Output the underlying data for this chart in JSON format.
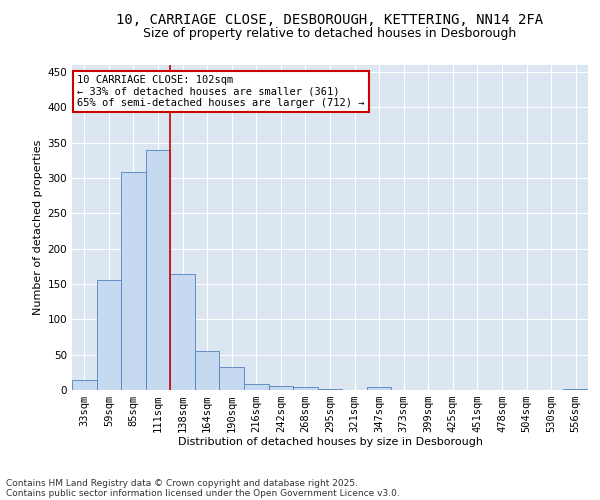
{
  "title_line1": "10, CARRIAGE CLOSE, DESBOROUGH, KETTERING, NN14 2FA",
  "title_line2": "Size of property relative to detached houses in Desborough",
  "xlabel": "Distribution of detached houses by size in Desborough",
  "ylabel": "Number of detached properties",
  "bar_color": "#c5d9f1",
  "bar_edge_color": "#4f81bd",
  "background_color": "#dce6f1",
  "grid_color": "#ffffff",
  "annotation_box_color": "#cc0000",
  "property_line_color": "#cc0000",
  "annotation_text": "10 CARRIAGE CLOSE: 102sqm\n← 33% of detached houses are smaller (361)\n65% of semi-detached houses are larger (712) →",
  "footer_line1": "Contains HM Land Registry data © Crown copyright and database right 2025.",
  "footer_line2": "Contains public sector information licensed under the Open Government Licence v3.0.",
  "categories": [
    "33sqm",
    "59sqm",
    "85sqm",
    "111sqm",
    "138sqm",
    "164sqm",
    "190sqm",
    "216sqm",
    "242sqm",
    "268sqm",
    "295sqm",
    "321sqm",
    "347sqm",
    "373sqm",
    "399sqm",
    "425sqm",
    "451sqm",
    "478sqm",
    "504sqm",
    "530sqm",
    "556sqm"
  ],
  "values": [
    14,
    155,
    308,
    340,
    164,
    55,
    32,
    8,
    6,
    4,
    2,
    0,
    4,
    0,
    0,
    0,
    0,
    0,
    0,
    0,
    2
  ],
  "ylim": [
    0,
    460
  ],
  "yticks": [
    0,
    50,
    100,
    150,
    200,
    250,
    300,
    350,
    400,
    450
  ],
  "property_line_x": 3.5,
  "title_fontsize": 10,
  "subtitle_fontsize": 9,
  "axis_label_fontsize": 8,
  "tick_fontsize": 7.5,
  "footer_fontsize": 6.5,
  "annotation_fontsize": 7.5
}
